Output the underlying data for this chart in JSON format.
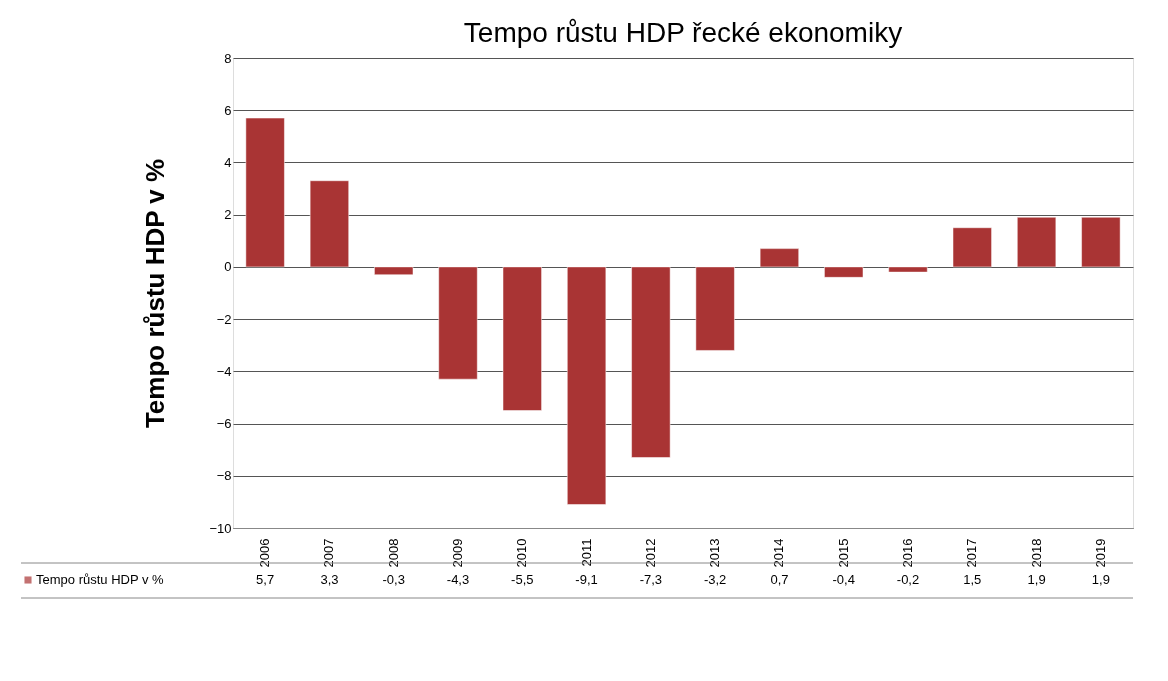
{
  "chart_data": {
    "type": "bar",
    "title": "Tempo růstu HDP řecké ekonomiky",
    "ylabel": "Tempo růstu HDP v %",
    "categories": [
      "2006",
      "2007",
      "2008",
      "2009",
      "2010",
      "2011",
      "2012",
      "2013",
      "2014",
      "2015",
      "2016",
      "2017",
      "2018",
      "2019"
    ],
    "series": [
      {
        "name": "Tempo růstu HDP v %",
        "color": "#a93434",
        "values": [
          5.7,
          3.3,
          -0.3,
          -4.3,
          -5.5,
          -9.1,
          -7.3,
          -3.2,
          0.7,
          -0.4,
          -0.2,
          1.5,
          1.9,
          1.9
        ],
        "value_labels": [
          "5,7",
          "3,3",
          "-0,3",
          "-4,3",
          "-5,5",
          "-9,1",
          "-7,3",
          "-3,2",
          "0,7",
          "-0,4",
          "-0,2",
          "1,5",
          "1,9",
          "1,9"
        ]
      }
    ],
    "ylim": [
      -10,
      8
    ],
    "yticks": [
      -10,
      -8,
      -6,
      -4,
      -2,
      0,
      2,
      4,
      6,
      8
    ],
    "grid": "y",
    "legend": "bottom"
  }
}
